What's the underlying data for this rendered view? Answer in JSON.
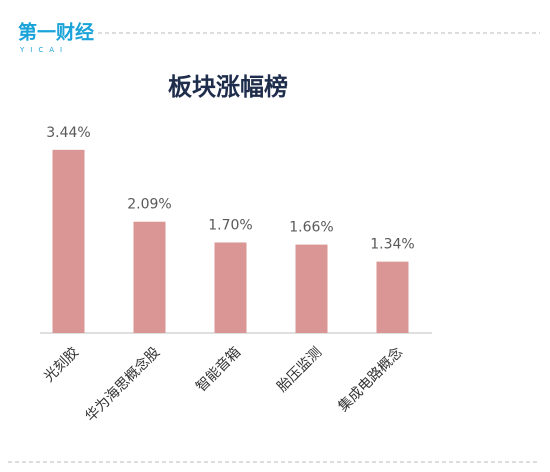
{
  "logo": "第一财经",
  "logo_sub": "YICAI",
  "chart_data": {
    "type": "bar",
    "title": "板块涨幅榜",
    "categories": [
      "光刻胶",
      "华为海思概念股",
      "智能音箱",
      "胎压监测",
      "集成电路概念"
    ],
    "values": [
      3.44,
      2.09,
      1.7,
      1.66,
      1.34
    ],
    "value_labels": [
      "3.44%",
      "2.09%",
      "1.70%",
      "1.66%",
      "1.34%"
    ],
    "color": "#d99694",
    "ylim": [
      0,
      4
    ]
  }
}
